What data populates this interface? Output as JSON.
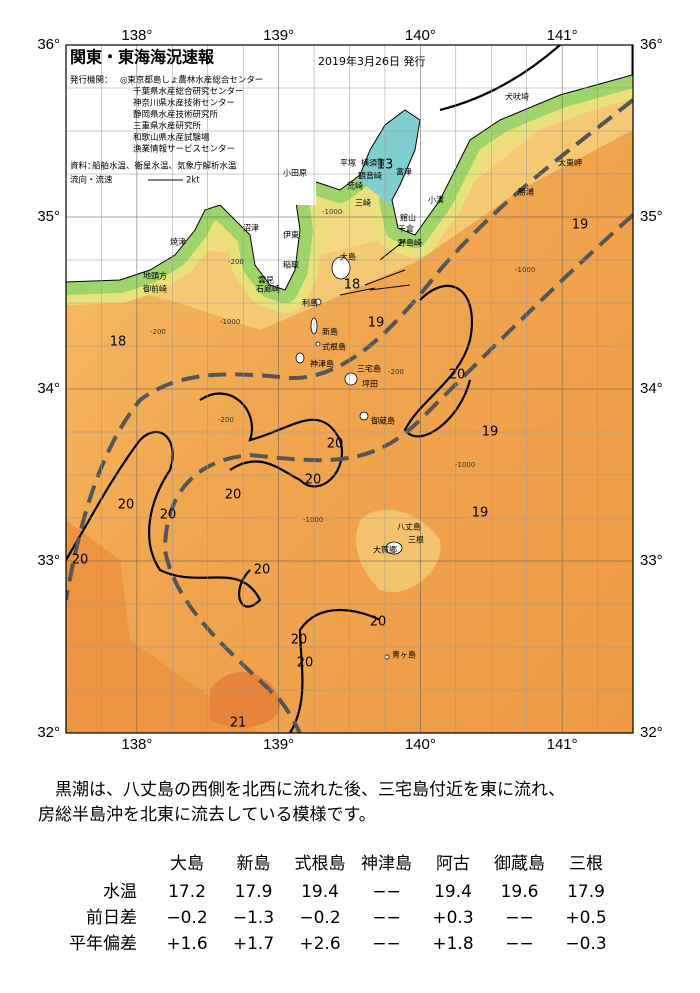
{
  "map": {
    "title": "関東・東海海況速報",
    "date": "2019年3月26日 発行",
    "issuers_label": "発行機関：",
    "issuers": [
      "◎東京都島しょ農林水産総合センター",
      "千葉県水産総合研究センター",
      "神奈川県水産技術センター",
      "静岡県水産技術研究所",
      "三重県水産研究所",
      "和歌山県水産試験場",
      "漁業情報サービスセンター"
    ],
    "sources_label": "資料：",
    "sources": "船舶水温、衛星水温、気象庁解析水温",
    "current_legend": "流向・流速",
    "current_scale": "2kt",
    "lon_labels": [
      "138°",
      "139°",
      "140°",
      "141°"
    ],
    "lat_labels": [
      "36°",
      "35°",
      "34°",
      "33°",
      "32°"
    ],
    "places": [
      "犬吠埼",
      "太東岬",
      "勝浦",
      "小湊",
      "館山",
      "千倉",
      "野島崎",
      "平塚",
      "横須賀",
      "観音崎",
      "荒崎",
      "富津",
      "三崎",
      "小田原",
      "伊東",
      "沼津",
      "焼津",
      "稲取",
      "雲見",
      "石廊崎",
      "地頭方",
      "御前崎",
      "大島",
      "利島",
      "新島",
      "式根島",
      "神津島",
      "三宅島",
      "坪田",
      "御蔵島",
      "八丈島",
      "三根",
      "大賀郷",
      "青ヶ島"
    ],
    "isotherms": [
      "13",
      "19",
      "18",
      "19",
      "18",
      "20",
      "19",
      "20",
      "20",
      "20",
      "20",
      "20",
      "19",
      "20",
      "20",
      "20",
      "20",
      "20",
      "21"
    ],
    "depths": [
      "-1000",
      "-200",
      "-200",
      "-1000",
      "-200",
      "-1000",
      "-1000",
      "-200",
      "-1000"
    ]
  },
  "text": {
    "lines": [
      "　黒潮は、八丈島の西側を北西に流れた後、三宅島付近を東に流れ、",
      "房総半島沖を北東に流去している模様です。"
    ]
  },
  "table": {
    "columns": [
      "大島",
      "新島",
      "式根島",
      "神津島",
      "阿古",
      "御蔵島",
      "三根"
    ],
    "rows": [
      {
        "label": "水温",
        "values": [
          "17.2",
          "17.9",
          "19.4",
          "−−",
          "19.4",
          "19.6",
          "17.9"
        ]
      },
      {
        "label": "前日差",
        "values": [
          "−0.2",
          "−1.3",
          "−0.2",
          "−−",
          "+0.3",
          "−−",
          "+0.5"
        ]
      },
      {
        "label": "平年偏差",
        "values": [
          "+1.6",
          "+1.7",
          "+2.6",
          "−−",
          "+1.8",
          "−−",
          "−0.3"
        ]
      }
    ]
  }
}
